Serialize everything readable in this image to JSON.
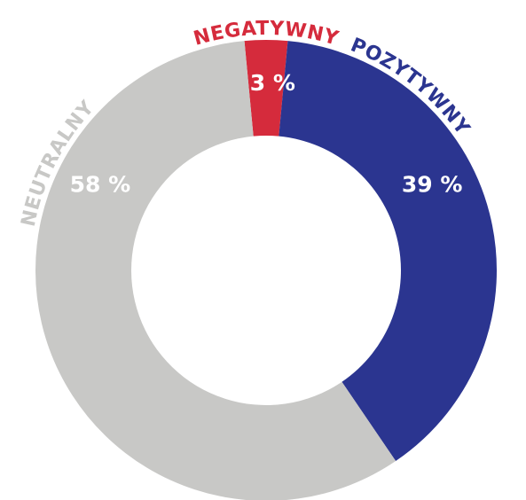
{
  "chart_data": {
    "type": "donut",
    "categories": [
      "NEGATYWNY",
      "POZYTYWNY",
      "NEUTRALNY"
    ],
    "values": [
      3,
      39,
      58
    ],
    "value_labels": [
      "3 %",
      "39 %",
      "58 %"
    ],
    "colors": [
      "#d52b3c",
      "#2b3590",
      "#c8c8c6"
    ]
  }
}
